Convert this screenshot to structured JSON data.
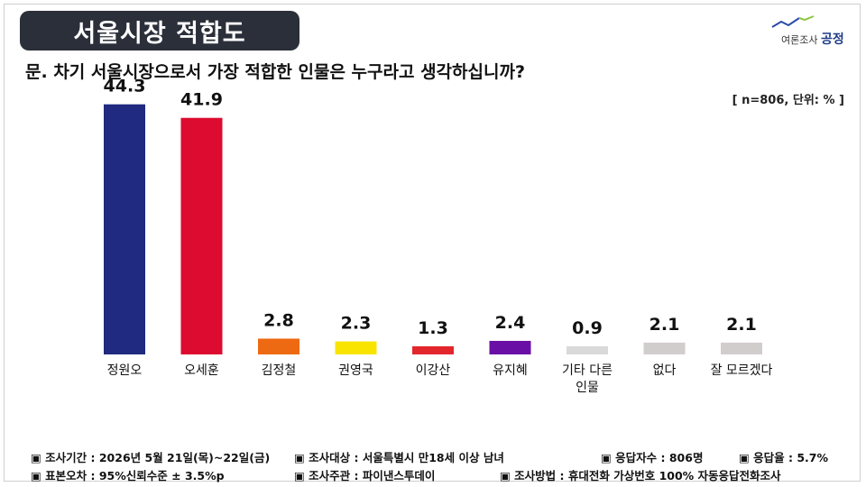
{
  "header": {
    "title": "서울시장 적합도",
    "logo_small": "여론조사",
    "logo_brand": "공정"
  },
  "question": "문. 차기 서울시장으로서 가장 적합한 인물은 누구라고 생각하십니까?",
  "meta": "[ n=806, 단위: % ]",
  "chart_data": {
    "type": "bar",
    "categories": [
      "정원오",
      "오세훈",
      "김정철",
      "권영국",
      "이강산",
      "유지혜",
      "기타 다른\n인물",
      "없다",
      "잘 모르겠다"
    ],
    "values": [
      44.3,
      41.9,
      2.8,
      2.3,
      1.3,
      2.4,
      0.9,
      2.1,
      2.1
    ],
    "value_labels": [
      "44.3",
      "41.9",
      "2.8",
      "2.3",
      "1.3",
      "2.4",
      "0.9",
      "2.1",
      "2.1"
    ],
    "colors": [
      "#1f2a80",
      "#dc0b2f",
      "#ee6a12",
      "#f8e400",
      "#e3262b",
      "#6a0fa6",
      "#d9d9d9",
      "#d2cdcd",
      "#d2cdcd"
    ],
    "title": "",
    "xlabel": "",
    "ylabel": "",
    "ylim": [
      0,
      50
    ],
    "grid": false,
    "legend": "none"
  },
  "footer": {
    "row1": [
      "▣ 조사기간 : 2026년 5월 21일(목)~22일(금)",
      "▣ 조사대상 : 서울특별시 만18세 이상 남녀",
      "▣ 응답자수 : 806명",
      "▣ 응답율 : 5.7%"
    ],
    "row2": [
      "▣ 표본오차 : 95%신뢰수준 ± 3.5%p",
      "▣ 조사주관 : 파이낸스투데이",
      "▣ 조사방법 : 휴대전화 가상번호 100% 자동응답전화조사"
    ]
  }
}
